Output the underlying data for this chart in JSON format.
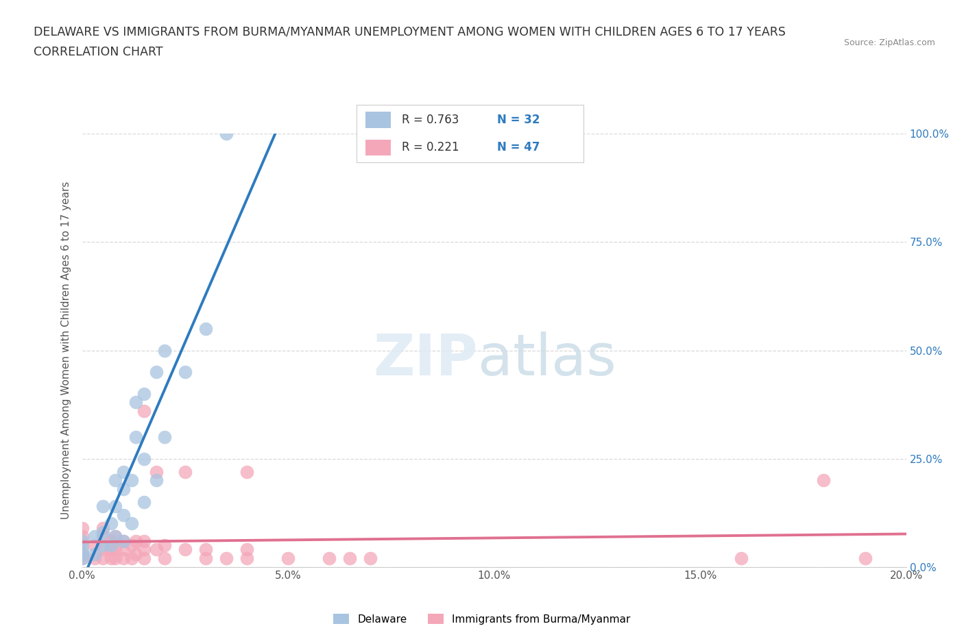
{
  "title_line1": "DELAWARE VS IMMIGRANTS FROM BURMA/MYANMAR UNEMPLOYMENT AMONG WOMEN WITH CHILDREN AGES 6 TO 17 YEARS",
  "title_line2": "CORRELATION CHART",
  "source_text": "Source: ZipAtlas.com",
  "ylabel": "Unemployment Among Women with Children Ages 6 to 17 years",
  "xlim": [
    0.0,
    0.2
  ],
  "ylim": [
    0.0,
    1.0
  ],
  "delaware_color": "#a8c4e0",
  "burma_color": "#f4a7b9",
  "delaware_line_color": "#2e7bbf",
  "burma_line_color": "#e07090",
  "background_color": "#ffffff",
  "grid_color": "#d8d8d8",
  "delaware_scatter_x": [
    0.0,
    0.0,
    0.0,
    0.0,
    0.003,
    0.003,
    0.005,
    0.005,
    0.005,
    0.007,
    0.007,
    0.008,
    0.008,
    0.008,
    0.01,
    0.01,
    0.01,
    0.01,
    0.012,
    0.012,
    0.013,
    0.013,
    0.015,
    0.015,
    0.015,
    0.018,
    0.018,
    0.02,
    0.02,
    0.025,
    0.03,
    0.035
  ],
  "delaware_scatter_y": [
    0.02,
    0.03,
    0.04,
    0.06,
    0.03,
    0.07,
    0.05,
    0.08,
    0.14,
    0.05,
    0.1,
    0.07,
    0.14,
    0.2,
    0.06,
    0.12,
    0.18,
    0.22,
    0.1,
    0.2,
    0.3,
    0.38,
    0.15,
    0.25,
    0.4,
    0.2,
    0.45,
    0.3,
    0.5,
    0.45,
    0.55,
    1.0
  ],
  "burma_scatter_x": [
    0.0,
    0.0,
    0.0,
    0.0,
    0.0,
    0.003,
    0.003,
    0.005,
    0.005,
    0.005,
    0.005,
    0.007,
    0.007,
    0.007,
    0.008,
    0.008,
    0.008,
    0.01,
    0.01,
    0.01,
    0.012,
    0.012,
    0.013,
    0.013,
    0.015,
    0.015,
    0.015,
    0.015,
    0.018,
    0.018,
    0.02,
    0.02,
    0.025,
    0.025,
    0.03,
    0.03,
    0.035,
    0.04,
    0.04,
    0.04,
    0.05,
    0.06,
    0.065,
    0.07,
    0.16,
    0.18,
    0.19
  ],
  "burma_scatter_y": [
    0.02,
    0.03,
    0.05,
    0.07,
    0.09,
    0.02,
    0.05,
    0.02,
    0.04,
    0.07,
    0.09,
    0.02,
    0.04,
    0.06,
    0.02,
    0.04,
    0.07,
    0.02,
    0.04,
    0.06,
    0.02,
    0.05,
    0.03,
    0.06,
    0.02,
    0.04,
    0.06,
    0.36,
    0.04,
    0.22,
    0.02,
    0.05,
    0.04,
    0.22,
    0.02,
    0.04,
    0.02,
    0.02,
    0.04,
    0.22,
    0.02,
    0.02,
    0.02,
    0.02,
    0.02,
    0.2,
    0.02
  ]
}
